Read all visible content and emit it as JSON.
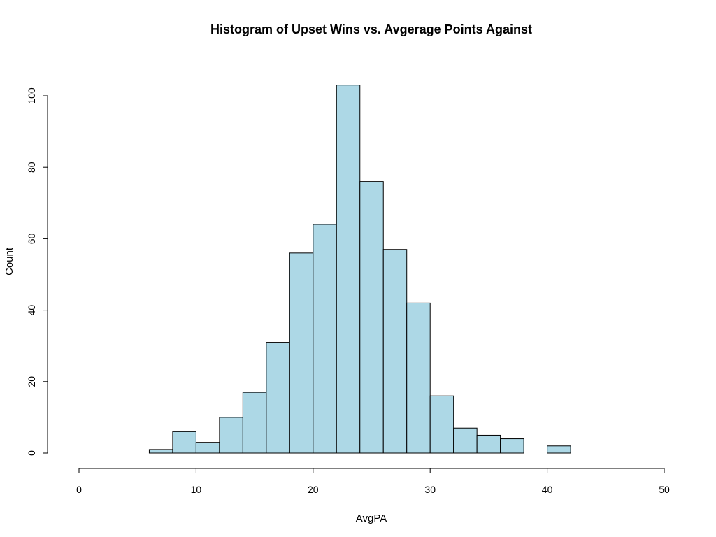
{
  "chart_data": {
    "type": "bar",
    "title": "Histogram of Upset Wins vs. Avgerage Points Against",
    "xlabel": "AvgPA",
    "ylabel": "Count",
    "bin_width": 2,
    "bins": [
      {
        "start": 6,
        "end": 8,
        "count": 1
      },
      {
        "start": 8,
        "end": 10,
        "count": 6
      },
      {
        "start": 10,
        "end": 12,
        "count": 3
      },
      {
        "start": 12,
        "end": 14,
        "count": 10
      },
      {
        "start": 14,
        "end": 16,
        "count": 17
      },
      {
        "start": 16,
        "end": 18,
        "count": 31
      },
      {
        "start": 18,
        "end": 20,
        "count": 56
      },
      {
        "start": 20,
        "end": 22,
        "count": 64
      },
      {
        "start": 22,
        "end": 24,
        "count": 103
      },
      {
        "start": 24,
        "end": 26,
        "count": 76
      },
      {
        "start": 26,
        "end": 28,
        "count": 57
      },
      {
        "start": 28,
        "end": 30,
        "count": 42
      },
      {
        "start": 30,
        "end": 32,
        "count": 16
      },
      {
        "start": 32,
        "end": 34,
        "count": 7
      },
      {
        "start": 34,
        "end": 36,
        "count": 5
      },
      {
        "start": 36,
        "end": 38,
        "count": 4
      },
      {
        "start": 38,
        "end": 40,
        "count": 0
      },
      {
        "start": 40,
        "end": 42,
        "count": 2
      }
    ],
    "xlim": [
      0,
      50
    ],
    "ylim": [
      0,
      103
    ],
    "x_ticks": [
      "0",
      "10",
      "20",
      "30",
      "40",
      "50"
    ],
    "y_ticks": [
      "0",
      "20",
      "40",
      "60",
      "80",
      "100"
    ],
    "bar_color": "#add8e6",
    "grid": false
  }
}
